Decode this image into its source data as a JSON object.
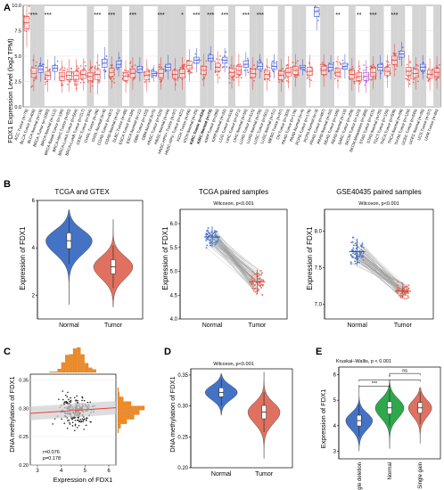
{
  "panels": {
    "A": {
      "label": "A",
      "chart_data": {
        "type": "boxplot",
        "ylabel": "FDX1 Expression Level (log2 TPM)",
        "ylim": [
          0,
          10
        ],
        "yticks": [
          "0.0",
          "2.5",
          "5.0",
          "7.5",
          "10.0"
        ],
        "groups": [
          {
            "name": "ACC.Tumor (n=79)",
            "kind": "tumor",
            "median": 8.3,
            "q1": 7.7,
            "q3": 8.9,
            "sig": ""
          },
          {
            "name": "BLCA.Tumor (n=408)",
            "kind": "tumor",
            "median": 3.3,
            "q1": 2.9,
            "q3": 3.8,
            "sig": "***"
          },
          {
            "name": "BLCA.Normal (n=19)",
            "kind": "normal",
            "median": 3.7,
            "q1": 3.4,
            "q3": 4.0,
            "sig": ""
          },
          {
            "name": "BRCA.Tumor (n=1093)",
            "kind": "tumor",
            "median": 3.1,
            "q1": 2.7,
            "q3": 3.5,
            "sig": "***"
          },
          {
            "name": "BRCA.Normal (n=112)",
            "kind": "normal",
            "median": 3.8,
            "q1": 3.5,
            "q3": 4.1,
            "sig": ""
          },
          {
            "name": "BRCA-Basal.Tumor (n=190)",
            "kind": "tumor",
            "median": 3.0,
            "q1": 2.6,
            "q3": 3.4,
            "sig": ""
          },
          {
            "name": "BRCA-Her2.Tumor (n=82)",
            "kind": "tumor",
            "median": 3.1,
            "q1": 2.7,
            "q3": 3.5,
            "sig": ""
          },
          {
            "name": "BRCA-LumA.Tumor (n=564)",
            "kind": "tumor",
            "median": 3.1,
            "q1": 2.7,
            "q3": 3.5,
            "sig": ""
          },
          {
            "name": "BRCA-LumB.Tumor (n=217)",
            "kind": "tumor",
            "median": 3.2,
            "q1": 2.8,
            "q3": 3.6,
            "sig": ""
          },
          {
            "name": "CESC.Tumor (n=304)",
            "kind": "tumor",
            "median": 3.0,
            "q1": 2.6,
            "q3": 3.4,
            "sig": ""
          },
          {
            "name": "CHOL.Tumor (n=36)",
            "kind": "tumor",
            "median": 3.2,
            "q1": 2.7,
            "q3": 3.7,
            "sig": "***"
          },
          {
            "name": "CHOL.Normal (n=9)",
            "kind": "normal",
            "median": 4.3,
            "q1": 3.9,
            "q3": 4.7,
            "sig": ""
          },
          {
            "name": "COAD.Tumor (n=457)",
            "kind": "tumor",
            "median": 3.4,
            "q1": 3.0,
            "q3": 3.8,
            "sig": "***"
          },
          {
            "name": "COAD.Normal (n=41)",
            "kind": "normal",
            "median": 4.2,
            "q1": 3.9,
            "q3": 4.5,
            "sig": ""
          },
          {
            "name": "DLBC.Tumor (n=48)",
            "kind": "tumor",
            "median": 3.0,
            "q1": 2.6,
            "q3": 3.4,
            "sig": ""
          },
          {
            "name": "ESCA.Tumor (n=184)",
            "kind": "tumor",
            "median": 3.3,
            "q1": 2.9,
            "q3": 3.7,
            "sig": "***"
          },
          {
            "name": "ESCA.Normal (n=11)",
            "kind": "normal",
            "median": 3.7,
            "q1": 3.4,
            "q3": 4.0,
            "sig": ""
          },
          {
            "name": "GBM.Tumor (n=153)",
            "kind": "tumor",
            "median": 3.1,
            "q1": 2.7,
            "q3": 3.5,
            "sig": ""
          },
          {
            "name": "GBM.Normal (n=5)",
            "kind": "normal",
            "median": 3.3,
            "q1": 3.1,
            "q3": 3.5,
            "sig": ""
          },
          {
            "name": "HNSC.Tumor (n=520)",
            "kind": "tumor",
            "median": 3.3,
            "q1": 2.9,
            "q3": 3.7,
            "sig": "***"
          },
          {
            "name": "HNSC.Normal (n=44)",
            "kind": "normal",
            "median": 3.9,
            "q1": 3.6,
            "q3": 4.2,
            "sig": ""
          },
          {
            "name": "HNSC-HPV+.Tumor (n=97)",
            "kind": "tumor",
            "median": 3.2,
            "q1": 2.8,
            "q3": 3.6,
            "sig": ""
          },
          {
            "name": "HNSC-HPV-.Tumor (n=421)",
            "kind": "tumor",
            "median": 3.3,
            "q1": 2.9,
            "q3": 3.7,
            "sig": "*"
          },
          {
            "name": "KICH.Tumor (n=66)",
            "kind": "tumor",
            "median": 4.1,
            "q1": 3.7,
            "q3": 4.5,
            "sig": ""
          },
          {
            "name": "KICH.Normal (n=25)",
            "kind": "normal",
            "median": 4.6,
            "q1": 4.3,
            "q3": 4.9,
            "sig": "***"
          },
          {
            "name": "KIRC.Tumor (n=533)",
            "kind": "tumor",
            "median": 3.6,
            "q1": 3.2,
            "q3": 4.0,
            "sig": ""
          },
          {
            "name": "KIRC.Normal (n=72)",
            "kind": "normal",
            "median": 4.8,
            "q1": 4.5,
            "q3": 5.1,
            "sig": "***"
          },
          {
            "name": "KIRP.Tumor (n=290)",
            "kind": "tumor",
            "median": 3.9,
            "q1": 3.5,
            "q3": 4.3,
            "sig": ""
          },
          {
            "name": "KIRP.Normal (n=32)",
            "kind": "normal",
            "median": 4.6,
            "q1": 4.3,
            "q3": 4.9,
            "sig": "***"
          },
          {
            "name": "LGG.Tumor (n=516)",
            "kind": "tumor",
            "median": 3.4,
            "q1": 3.0,
            "q3": 3.8,
            "sig": ""
          },
          {
            "name": "LIHC.Tumor (n=371)",
            "kind": "tumor",
            "median": 3.6,
            "q1": 3.2,
            "q3": 4.0,
            "sig": ""
          },
          {
            "name": "LIHC.Normal (n=50)",
            "kind": "normal",
            "median": 4.2,
            "q1": 3.9,
            "q3": 4.5,
            "sig": "***"
          },
          {
            "name": "LUAD.Tumor (n=515)",
            "kind": "tumor",
            "median": 3.3,
            "q1": 2.9,
            "q3": 3.7,
            "sig": ""
          },
          {
            "name": "LUAD.Normal (n=59)",
            "kind": "normal",
            "median": 4.0,
            "q1": 3.7,
            "q3": 4.3,
            "sig": "***"
          },
          {
            "name": "LUSC.Tumor (n=501)",
            "kind": "tumor",
            "median": 3.2,
            "q1": 2.8,
            "q3": 3.6,
            "sig": ""
          },
          {
            "name": "LUSC.Normal (n=51)",
            "kind": "normal",
            "median": 4.0,
            "q1": 3.7,
            "q3": 4.3,
            "sig": ""
          },
          {
            "name": "MESO.Tumor (n=87)",
            "kind": "tumor",
            "median": 3.1,
            "q1": 2.7,
            "q3": 3.5,
            "sig": ""
          },
          {
            "name": "OV.Tumor (n=303)",
            "kind": "tumor",
            "median": 3.4,
            "q1": 3.0,
            "q3": 3.8,
            "sig": ""
          },
          {
            "name": "PAAD.Tumor (n=178)",
            "kind": "tumor",
            "median": 3.6,
            "q1": 3.2,
            "q3": 4.0,
            "sig": ""
          },
          {
            "name": "PAAD.Normal (n=4)",
            "kind": "normal",
            "median": 3.9,
            "q1": 3.7,
            "q3": 4.1,
            "sig": ""
          },
          {
            "name": "PCPG.Tumor (n=179)",
            "kind": "tumor",
            "median": 3.5,
            "q1": 3.1,
            "q3": 3.9,
            "sig": ""
          },
          {
            "name": "PCPG.Normal (n=3)",
            "kind": "normal",
            "median": 9.4,
            "q1": 8.9,
            "q3": 9.8,
            "sig": ""
          },
          {
            "name": "PRAD.Tumor (n=497)",
            "kind": "tumor",
            "median": 3.6,
            "q1": 3.2,
            "q3": 4.0,
            "sig": ""
          },
          {
            "name": "PRAD.Normal (n=52)",
            "kind": "normal",
            "median": 3.9,
            "q1": 3.6,
            "q3": 4.2,
            "sig": ""
          },
          {
            "name": "READ.Tumor (n=166)",
            "kind": "tumor",
            "median": 3.4,
            "q1": 3.0,
            "q3": 3.8,
            "sig": "**"
          },
          {
            "name": "READ.Normal (n=10)",
            "kind": "normal",
            "median": 4.0,
            "q1": 3.7,
            "q3": 4.3,
            "sig": ""
          },
          {
            "name": "SARC.Tumor (n=259)",
            "kind": "tumor",
            "median": 3.2,
            "q1": 2.8,
            "q3": 3.6,
            "sig": ""
          },
          {
            "name": "SKCM.Tumor (n=103)",
            "kind": "tumor",
            "median": 3.0,
            "q1": 2.6,
            "q3": 3.4,
            "sig": "**"
          },
          {
            "name": "SKCM.Metastasis (n=368)",
            "kind": "metastasis",
            "median": 3.0,
            "q1": 2.6,
            "q3": 3.4,
            "sig": ""
          },
          {
            "name": "STAD.Tumor (n=415)",
            "kind": "tumor",
            "median": 3.4,
            "q1": 3.0,
            "q3": 3.8,
            "sig": "***"
          },
          {
            "name": "STAD.Normal (n=35)",
            "kind": "normal",
            "median": 3.9,
            "q1": 3.6,
            "q3": 4.2,
            "sig": ""
          },
          {
            "name": "TGCT.Tumor (n=150)",
            "kind": "tumor",
            "median": 3.5,
            "q1": 3.1,
            "q3": 3.9,
            "sig": ""
          },
          {
            "name": "THCA.Tumor (n=509)",
            "kind": "tumor",
            "median": 4.6,
            "q1": 4.2,
            "q3": 5.0,
            "sig": "***"
          },
          {
            "name": "THCA.Normal (n=59)",
            "kind": "normal",
            "median": 5.2,
            "q1": 4.9,
            "q3": 5.5,
            "sig": ""
          },
          {
            "name": "THYM.Tumor (n=120)",
            "kind": "tumor",
            "median": 3.5,
            "q1": 3.1,
            "q3": 3.9,
            "sig": ""
          },
          {
            "name": "UCEC.Tumor (n=545)",
            "kind": "tumor",
            "median": 3.3,
            "q1": 2.9,
            "q3": 3.7,
            "sig": ""
          },
          {
            "name": "UCEC.Normal (n=35)",
            "kind": "normal",
            "median": 3.9,
            "q1": 3.6,
            "q3": 4.2,
            "sig": ""
          },
          {
            "name": "UCS.Tumor (n=57)",
            "kind": "tumor",
            "median": 3.2,
            "q1": 2.8,
            "q3": 3.6,
            "sig": ""
          },
          {
            "name": "UVM.Tumor (n=80)",
            "kind": "tumor",
            "median": 3.4,
            "q1": 3.0,
            "q3": 3.8,
            "sig": ""
          }
        ]
      }
    },
    "B": [
      {
        "label": "B",
        "chart_data": {
          "type": "violin",
          "title": "TCGA and GTEX",
          "ylabel": "Expression of FDX1",
          "ylim": [
            1,
            6
          ],
          "yticks": [
            "2",
            "4",
            "6"
          ],
          "categories": [
            "Normal",
            "Tumor"
          ],
          "medians": [
            4.3,
            3.2
          ],
          "colors": [
            "#4472c4",
            "#e07060"
          ]
        }
      },
      {
        "chart_data": {
          "type": "paired",
          "title": "TCGA paired samples",
          "stat": "Wilcoxon, p<0.001",
          "ylim": [
            4.0,
            6.3
          ],
          "yticks": [
            "4.0",
            "4.5",
            "5.0",
            "5.5",
            "6.0"
          ],
          "categories": [
            "Normal",
            "Tumor"
          ],
          "means": [
            5.72,
            4.78
          ]
        }
      },
      {
        "chart_data": {
          "type": "paired",
          "title": "GSE40435 paired samples",
          "stat": "Wilcoxon, p<0.001",
          "ylim": [
            6.8,
            8.3
          ],
          "yticks": [
            "7.0",
            "7.5",
            "8.0"
          ],
          "categories": [
            "Normal",
            "Tumor"
          ],
          "means": [
            7.72,
            7.18
          ]
        }
      }
    ],
    "C": {
      "label": "C",
      "chart_data": {
        "type": "scatter",
        "xlabel": "Expression of FDX1",
        "ylabel": "DNA methylation of FDX1",
        "xlim": [
          2.7,
          6.3
        ],
        "ylim": [
          0.2,
          0.36
        ],
        "xticks": [
          "3",
          "4",
          "5",
          "6"
        ],
        "yticks": [
          "0.20",
          "0.25",
          "0.30",
          "0.35"
        ],
        "annotation": [
          "r=0.076",
          "p=0.178"
        ],
        "fit": {
          "x": [
            2.7,
            6.3
          ],
          "y": [
            0.291,
            0.301
          ]
        }
      }
    },
    "D": {
      "label": "D",
      "chart_data": {
        "type": "violin",
        "stat": "Wilcoxon, p<0.001",
        "ylabel": "DNA methylation of FDX1",
        "ylim": [
          0.2,
          0.36
        ],
        "yticks": [
          "0.20",
          "0.25",
          "0.30",
          "0.35"
        ],
        "categories": [
          "Normal",
          "Tumor"
        ],
        "medians": [
          0.322,
          0.29
        ],
        "colors": [
          "#4472c4",
          "#e07060"
        ]
      }
    },
    "E": {
      "label": "E",
      "chart_data": {
        "type": "violin",
        "stat": "Kruskal–Wallis, p < 0.001",
        "ylabel": "Expression of FDX1",
        "ylim": [
          2.7,
          6.3
        ],
        "yticks": [
          "3",
          "4",
          "5",
          "6"
        ],
        "categories": [
          "Single deletion",
          "Normal",
          "Single gain"
        ],
        "medians": [
          4.2,
          4.7,
          4.7
        ],
        "colors": [
          "#4472c4",
          "#2ea84a",
          "#e07060"
        ],
        "comparisons": [
          "***",
          "*",
          "ns"
        ]
      }
    }
  }
}
